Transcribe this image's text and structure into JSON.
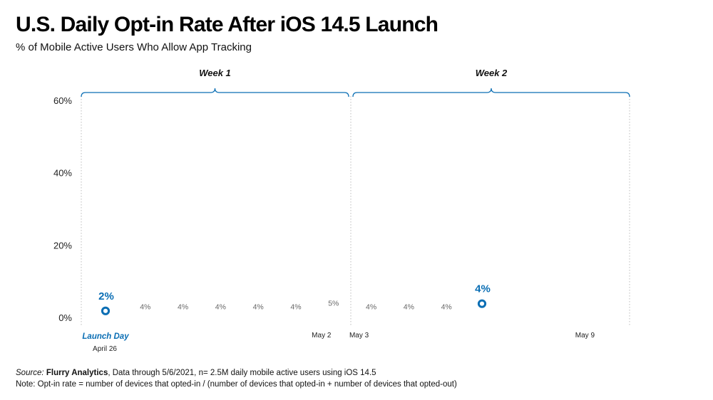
{
  "title": "U.S. Daily Opt-in Rate After iOS 14.5 Launch",
  "subtitle": "% of Mobile Active Users Who Allow App Tracking",
  "footer": {
    "source_label": "Source:",
    "source_name": "Flurry Analytics",
    "source_rest": ", Data through 5/6/2021, n= 2.5M daily mobile active users using iOS 14.5",
    "note": "Note: Opt-in rate = number of devices that opted-in / (number of devices that opted-in + number of devices that opted-out)"
  },
  "colors": {
    "accent": "#0a6eb4",
    "muted": "#666666",
    "grid": "#bbbbbb"
  },
  "chart_data": {
    "type": "scatter",
    "title": "U.S. Daily Opt-in Rate After iOS 14.5 Launch",
    "subtitle": "% of Mobile Active Users Who Allow App Tracking",
    "ylim": [
      0,
      60
    ],
    "yticks": [
      "0%",
      "20%",
      "40%",
      "60%"
    ],
    "weeks": [
      {
        "label": "Week 1",
        "start": "April 26",
        "end": "May 2"
      },
      {
        "label": "Week 2",
        "start": "May 3",
        "end": "May 9"
      }
    ],
    "x_labels": [
      {
        "date": "2021-04-26",
        "text": "April 26",
        "tag": "Launch Day"
      },
      {
        "date": "2021-05-02",
        "text": "May 2"
      },
      {
        "date": "2021-05-03",
        "text": "May 3"
      },
      {
        "date": "2021-05-09",
        "text": "May 9"
      }
    ],
    "points": [
      {
        "date": "2021-04-26",
        "value": 2,
        "label": "2%",
        "highlight": true
      },
      {
        "date": "2021-04-27",
        "value": 4,
        "label": "4%"
      },
      {
        "date": "2021-04-28",
        "value": 4,
        "label": "4%"
      },
      {
        "date": "2021-04-29",
        "value": 4,
        "label": "4%"
      },
      {
        "date": "2021-04-30",
        "value": 4,
        "label": "4%"
      },
      {
        "date": "2021-05-01",
        "value": 4,
        "label": "4%"
      },
      {
        "date": "2021-05-02",
        "value": 5,
        "label": "5%"
      },
      {
        "date": "2021-05-03",
        "value": 4,
        "label": "4%"
      },
      {
        "date": "2021-05-04",
        "value": 4,
        "label": "4%"
      },
      {
        "date": "2021-05-05",
        "value": 4,
        "label": "4%"
      },
      {
        "date": "2021-05-06",
        "value": 4,
        "label": "4%",
        "highlight": true
      }
    ]
  }
}
